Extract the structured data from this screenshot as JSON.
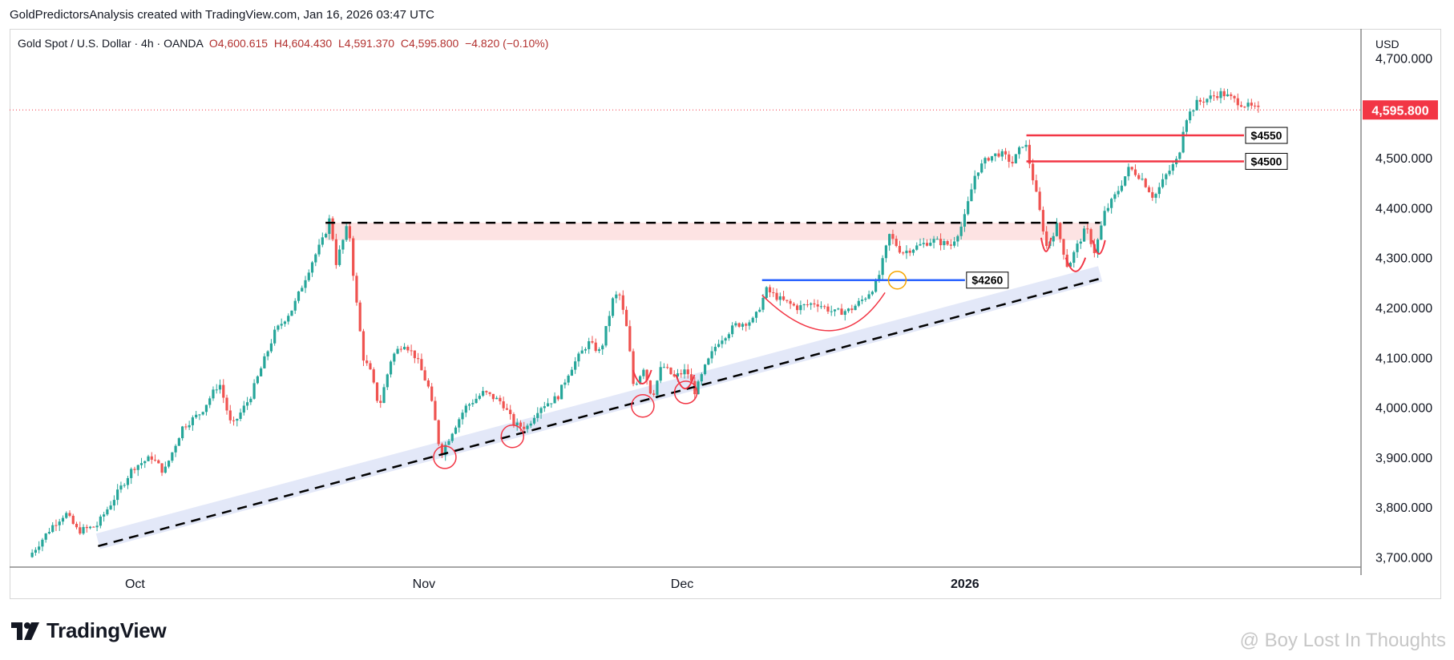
{
  "caption": "GoldPredictorsAnalysis created with TradingView.com, Jan 16, 2026 03:47 UTC",
  "legend": {
    "symbol": "Gold Spot / U.S. Dollar · 4h · OANDA",
    "open": "O4,600.615",
    "high": "H4,604.430",
    "low": "L4,591.370",
    "close": "C4,595.800",
    "change": "−4.820 (−0.10%)"
  },
  "currency": "USD",
  "brand": "TradingView",
  "watermark": "@ Boy Lost In Thoughts",
  "colors": {
    "up": "#26a69a",
    "down": "#ef5350",
    "price_tag": "#f23645",
    "line_red": "#f23645",
    "line_blue": "#2962ff"
  },
  "chart_data": {
    "type": "candlestick",
    "symbol": "XAUUSD",
    "interval": "4h",
    "ylim": [
      3680,
      4720
    ],
    "y_ticks": [
      3700,
      3800,
      3900,
      4000,
      4100,
      4200,
      4300,
      4400,
      4500,
      4600,
      4700
    ],
    "y_tick_labels": [
      "3,700.000",
      "3,800.000",
      "3,900.000",
      "4,000.000",
      "4,100.000",
      "4,200.000",
      "4,300.000",
      "4,400.000",
      "4,500.000",
      "",
      "4,700.000"
    ],
    "x_labels": [
      {
        "label": "Oct",
        "x": 0.085
      },
      {
        "label": "Nov",
        "x": 0.32
      },
      {
        "label": "Dec",
        "x": 0.53
      },
      {
        "label": "2026",
        "x": 0.76
      }
    ],
    "price_path": [
      [
        0.0,
        3700
      ],
      [
        0.02,
        3765
      ],
      [
        0.03,
        3788
      ],
      [
        0.04,
        3752
      ],
      [
        0.055,
        3762
      ],
      [
        0.07,
        3820
      ],
      [
        0.085,
        3880
      ],
      [
        0.1,
        3900
      ],
      [
        0.11,
        3870
      ],
      [
        0.125,
        3960
      ],
      [
        0.14,
        3990
      ],
      [
        0.155,
        4050
      ],
      [
        0.165,
        3960
      ],
      [
        0.18,
        4020
      ],
      [
        0.2,
        4150
      ],
      [
        0.215,
        4200
      ],
      [
        0.23,
        4290
      ],
      [
        0.24,
        4340
      ],
      [
        0.245,
        4380
      ],
      [
        0.25,
        4290
      ],
      [
        0.26,
        4370
      ],
      [
        0.265,
        4240
      ],
      [
        0.272,
        4100
      ],
      [
        0.278,
        4070
      ],
      [
        0.285,
        4000
      ],
      [
        0.295,
        4100
      ],
      [
        0.305,
        4130
      ],
      [
        0.315,
        4100
      ],
      [
        0.325,
        4040
      ],
      [
        0.33,
        3980
      ],
      [
        0.335,
        3905
      ],
      [
        0.345,
        3955
      ],
      [
        0.355,
        4000
      ],
      [
        0.37,
        4030
      ],
      [
        0.385,
        4010
      ],
      [
        0.395,
        3965
      ],
      [
        0.405,
        3960
      ],
      [
        0.415,
        4000
      ],
      [
        0.43,
        4020
      ],
      [
        0.44,
        4075
      ],
      [
        0.455,
        4130
      ],
      [
        0.465,
        4110
      ],
      [
        0.475,
        4215
      ],
      [
        0.48,
        4230
      ],
      [
        0.487,
        4150
      ],
      [
        0.492,
        4040
      ],
      [
        0.5,
        4080
      ],
      [
        0.507,
        4020
      ],
      [
        0.515,
        4085
      ],
      [
        0.525,
        4060
      ],
      [
        0.535,
        4075
      ],
      [
        0.542,
        4030
      ],
      [
        0.55,
        4080
      ],
      [
        0.56,
        4130
      ],
      [
        0.575,
        4165
      ],
      [
        0.59,
        4175
      ],
      [
        0.6,
        4235
      ],
      [
        0.612,
        4215
      ],
      [
        0.625,
        4200
      ],
      [
        0.64,
        4210
      ],
      [
        0.655,
        4190
      ],
      [
        0.668,
        4195
      ],
      [
        0.68,
        4220
      ],
      [
        0.69,
        4250
      ],
      [
        0.7,
        4345
      ],
      [
        0.71,
        4310
      ],
      [
        0.72,
        4320
      ],
      [
        0.735,
        4335
      ],
      [
        0.75,
        4325
      ],
      [
        0.76,
        4370
      ],
      [
        0.77,
        4470
      ],
      [
        0.78,
        4500
      ],
      [
        0.79,
        4510
      ],
      [
        0.8,
        4490
      ],
      [
        0.81,
        4535
      ],
      [
        0.82,
        4420
      ],
      [
        0.828,
        4320
      ],
      [
        0.836,
        4365
      ],
      [
        0.845,
        4280
      ],
      [
        0.852,
        4320
      ],
      [
        0.86,
        4360
      ],
      [
        0.867,
        4310
      ],
      [
        0.875,
        4390
      ],
      [
        0.885,
        4430
      ],
      [
        0.895,
        4480
      ],
      [
        0.905,
        4460
      ],
      [
        0.915,
        4420
      ],
      [
        0.925,
        4465
      ],
      [
        0.935,
        4500
      ],
      [
        0.94,
        4575
      ],
      [
        0.95,
        4610
      ],
      [
        0.96,
        4620
      ],
      [
        0.97,
        4630
      ],
      [
        0.985,
        4610
      ],
      [
        1.0,
        4596
      ]
    ],
    "annotations": {
      "resistance_zone": {
        "y_range": [
          4335,
          4370
        ],
        "x_range": [
          0.24,
          0.87
        ]
      },
      "resistance_line": {
        "y": 4370,
        "x_range": [
          0.24,
          0.87
        ]
      },
      "trend_line": {
        "from": [
          0.055,
          3722
        ],
        "to": [
          0.87,
          4258
        ]
      },
      "level_4260": {
        "label": "$4260",
        "y": 4255,
        "x_range": [
          0.595,
          0.76
        ]
      },
      "level_4550": {
        "label": "$4550",
        "y": 4545,
        "x_range": [
          0.81,
          1.0
        ]
      },
      "level_4500": {
        "label": "$4500",
        "y": 4493,
        "x_range": [
          0.81,
          1.0
        ]
      },
      "last_price": {
        "label": "4,595.800",
        "y": 4596
      }
    }
  }
}
